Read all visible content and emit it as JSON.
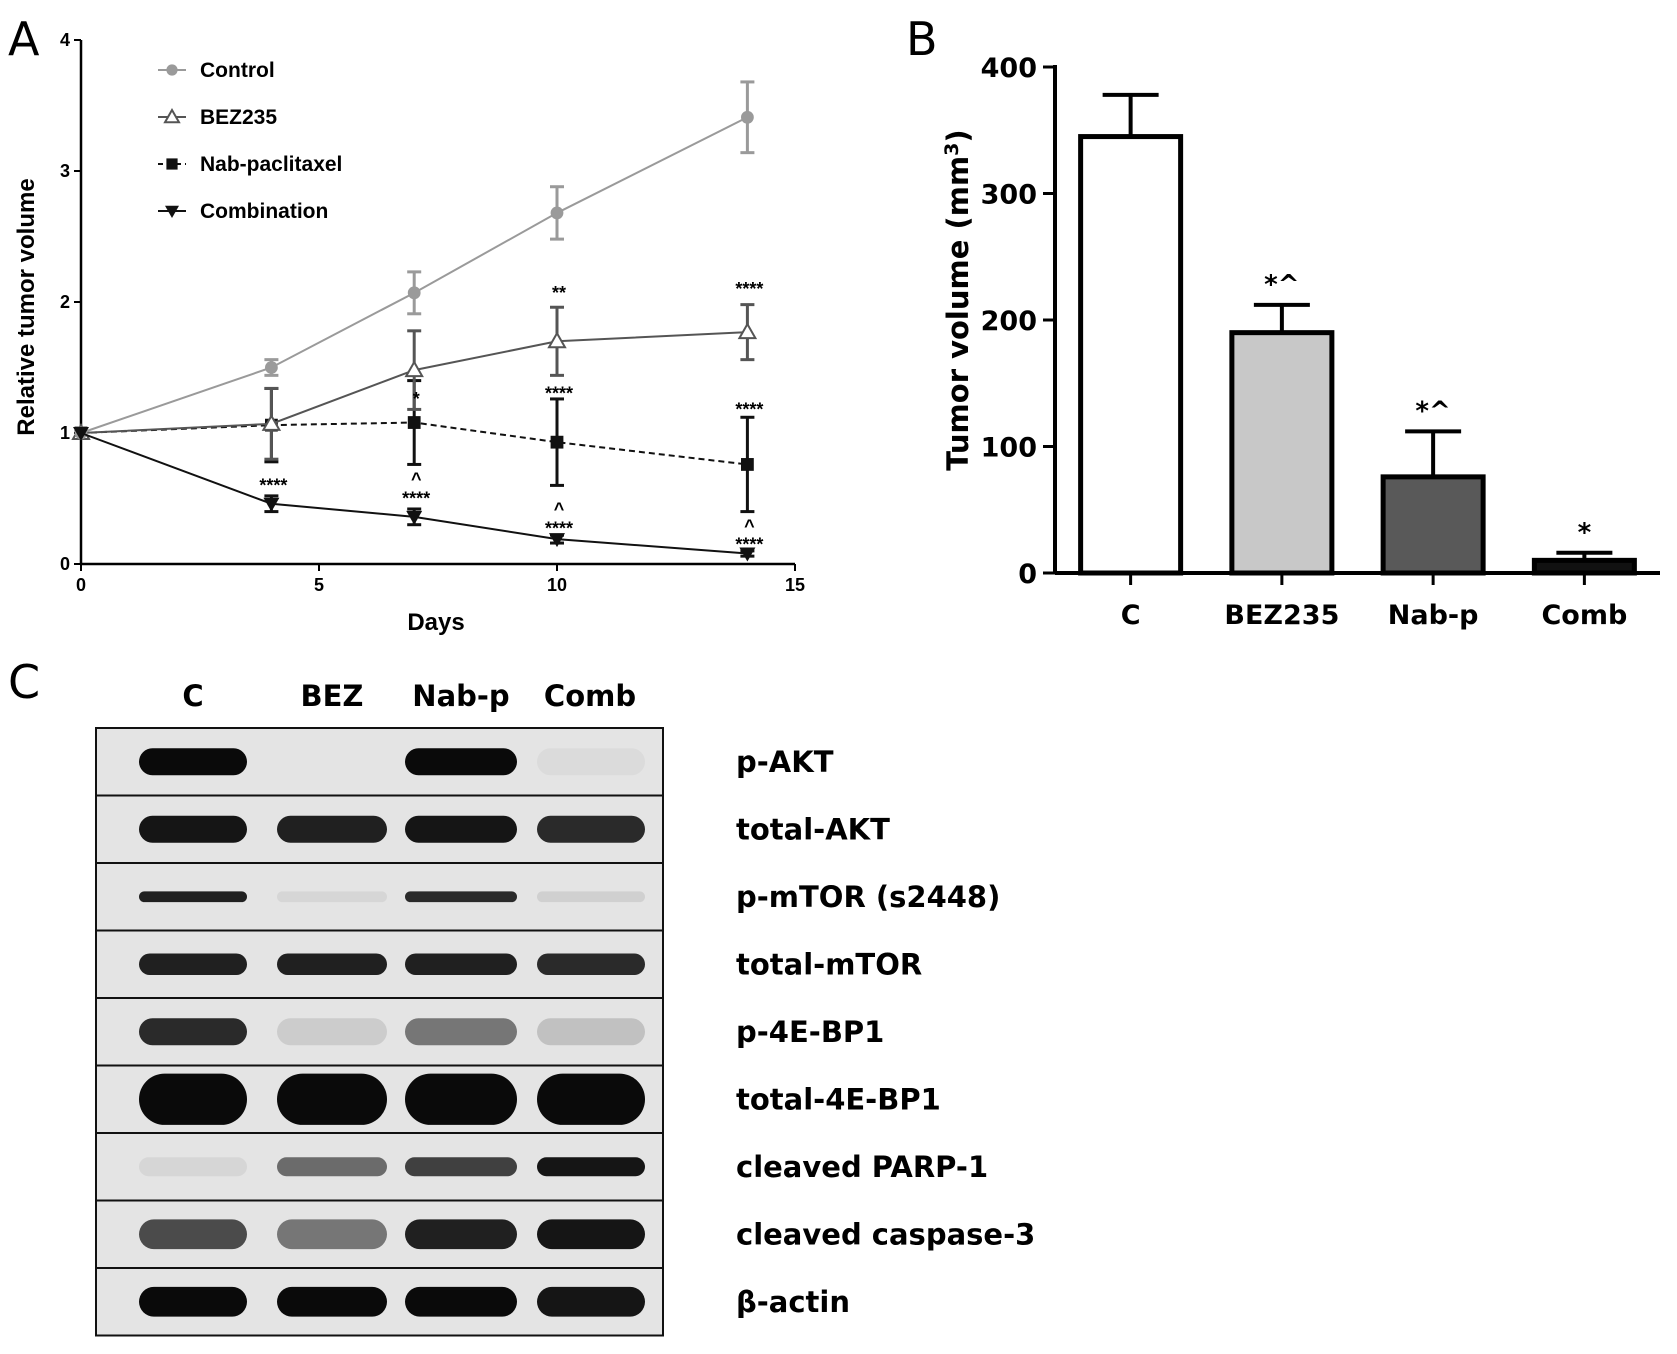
{
  "panels": {
    "a": "A",
    "b": "B",
    "c": "C"
  },
  "chart_data": [
    {
      "type": "line",
      "panel": "A",
      "xlabel": "Days",
      "ylabel": "Relative tumor volume",
      "xlim": [
        0,
        15
      ],
      "ylim": [
        0,
        4
      ],
      "xticks": [
        "0",
        "5",
        "10",
        "15"
      ],
      "yticks": [
        "0",
        "1",
        "2",
        "3",
        "4"
      ],
      "legend_position": "top-left",
      "x": [
        0,
        4,
        7,
        10,
        14
      ],
      "series": [
        {
          "name": "Control",
          "marker": "circle",
          "color": "#9a9a9a",
          "dash": "solid",
          "values": [
            1.0,
            1.5,
            2.07,
            2.68,
            3.41
          ],
          "err": [
            0,
            0.06,
            0.16,
            0.2,
            0.27
          ]
        },
        {
          "name": "BEZ235",
          "marker": "triangle-up",
          "color": "#555555",
          "dash": "solid",
          "values": [
            1.0,
            1.07,
            1.48,
            1.7,
            1.77
          ],
          "err": [
            0,
            0.27,
            0.3,
            0.26,
            0.21
          ]
        },
        {
          "name": "Nab-paclitaxel",
          "marker": "square",
          "color": "#111111",
          "dash": "dashed",
          "values": [
            1.0,
            1.06,
            1.08,
            0.93,
            0.76
          ],
          "err": [
            0,
            0.28,
            0.32,
            0.33,
            0.36
          ]
        },
        {
          "name": "Combination",
          "marker": "triangle-down",
          "color": "#111111",
          "dash": "solid",
          "values": [
            1.0,
            0.46,
            0.36,
            0.19,
            0.08
          ],
          "err": [
            0,
            0.06,
            0.06,
            0.03,
            0.02
          ]
        }
      ],
      "annotations": [
        {
          "x": 4,
          "y": 0.6,
          "text": "****"
        },
        {
          "x": 7,
          "y": 1.26,
          "text": "*"
        },
        {
          "x": 7,
          "y": 0.65,
          "text": "^"
        },
        {
          "x": 7,
          "y": 0.5,
          "text": "****"
        },
        {
          "x": 10,
          "y": 2.07,
          "text": "**"
        },
        {
          "x": 10,
          "y": 1.3,
          "text": "****"
        },
        {
          "x": 10,
          "y": 0.42,
          "text": "^"
        },
        {
          "x": 10,
          "y": 0.27,
          "text": "****"
        },
        {
          "x": 14,
          "y": 2.1,
          "text": "****"
        },
        {
          "x": 14,
          "y": 1.18,
          "text": "****"
        },
        {
          "x": 14,
          "y": 0.29,
          "text": "^"
        },
        {
          "x": 14,
          "y": 0.15,
          "text": "****"
        }
      ]
    },
    {
      "type": "bar",
      "panel": "B",
      "ylabel_main": "Tumor volume (mm",
      "ylabel_sup": "3",
      "ylabel_end": ")",
      "categories": [
        "C",
        "BEZ235",
        "Nab-p",
        "Comb"
      ],
      "values": [
        345,
        190,
        76,
        10
      ],
      "err": [
        33,
        22,
        36,
        6
      ],
      "fills": [
        "#ffffff",
        "#c8c8c8",
        "#595959",
        "#111111"
      ],
      "ylim": [
        0,
        400
      ],
      "yticks": [
        "0",
        "100",
        "200",
        "300",
        "400"
      ],
      "annotations": [
        "",
        "*^",
        "*^",
        "*"
      ]
    }
  ],
  "blot": {
    "lanes": [
      "C",
      "BEZ",
      "Nab-p",
      "Comb"
    ],
    "rows": [
      {
        "label": "p-AKT",
        "intensity": [
          1.0,
          0.0,
          1.0,
          0.03
        ],
        "thickness": 0.5
      },
      {
        "label": "total-AKT",
        "intensity": [
          0.95,
          0.9,
          0.95,
          0.85
        ],
        "thickness": 0.5
      },
      {
        "label": "p-mTOR (s2448)",
        "intensity": [
          0.9,
          0.05,
          0.85,
          0.08
        ],
        "thickness": 0.2
      },
      {
        "label": "total-mTOR",
        "intensity": [
          0.9,
          0.9,
          0.9,
          0.85
        ],
        "thickness": 0.4
      },
      {
        "label": "p-4E-BP1",
        "intensity": [
          0.85,
          0.1,
          0.5,
          0.15
        ],
        "thickness": 0.5
      },
      {
        "label": "total-4E-BP1",
        "intensity": [
          1.0,
          1.0,
          1.0,
          1.0
        ],
        "thickness": 0.95
      },
      {
        "label": "cleaved PARP-1",
        "intensity": [
          0.05,
          0.55,
          0.75,
          0.95
        ],
        "thickness": 0.35
      },
      {
        "label": "cleaved caspase-3",
        "intensity": [
          0.7,
          0.5,
          0.9,
          0.95
        ],
        "thickness": 0.55
      },
      {
        "label": "β-actin",
        "intensity": [
          1.0,
          1.0,
          1.0,
          0.95
        ],
        "thickness": 0.55
      }
    ]
  }
}
